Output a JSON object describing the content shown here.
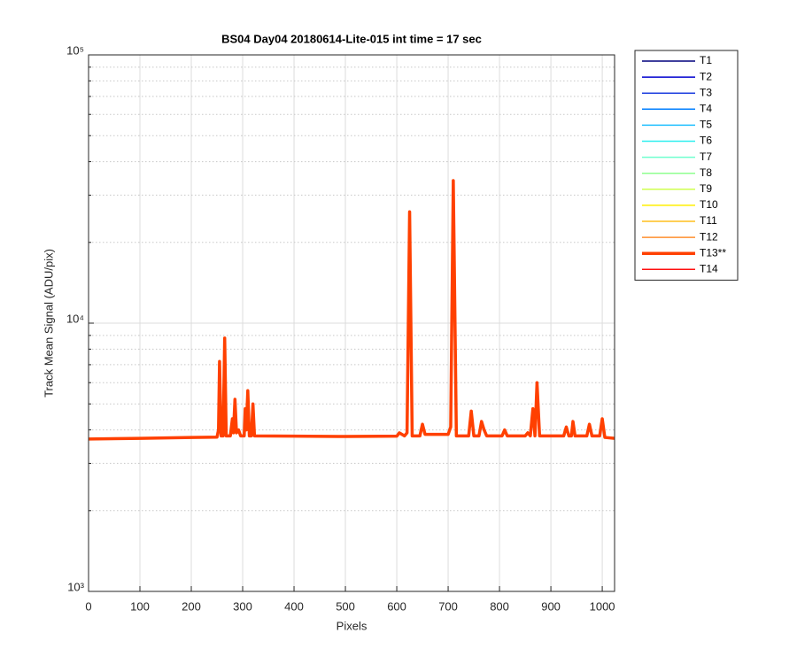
{
  "chart_data": {
    "type": "line",
    "title": "BS04 Day04 20180614-Lite-015 int time = 17 sec",
    "x_label": "Pixels",
    "y_label": "Track Mean Signal (ADU/pix)",
    "log_y": true,
    "grid": true,
    "legend": "outside-right",
    "xlim": [
      0,
      1024
    ],
    "ylim": [
      1000,
      100000
    ],
    "xticks": [
      0,
      100,
      200,
      300,
      400,
      500,
      600,
      700,
      800,
      900,
      1000
    ],
    "yticks": [
      {
        "value": 1000,
        "label": "10³"
      },
      {
        "value": 10000,
        "label": "10⁴"
      },
      {
        "value": 100000,
        "label": "10⁵"
      }
    ],
    "yminorticks": [
      2000,
      3000,
      4000,
      5000,
      6000,
      7000,
      8000,
      9000,
      20000,
      30000,
      40000,
      50000,
      60000,
      70000,
      80000,
      90000
    ],
    "x": [
      0,
      100,
      200,
      250,
      253,
      255,
      258,
      262,
      265,
      268,
      276,
      280,
      282,
      285,
      288,
      292,
      296,
      303,
      305,
      307,
      310,
      313,
      317,
      320,
      323,
      400,
      500,
      600,
      605,
      615,
      620,
      625,
      630,
      645,
      650,
      655,
      700,
      705,
      710,
      716,
      740,
      745,
      750,
      760,
      765,
      770,
      775,
      805,
      810,
      815,
      850,
      855,
      860,
      865,
      869,
      873,
      878,
      925,
      930,
      935,
      940,
      943,
      947,
      970,
      975,
      980,
      995,
      1000,
      1005,
      1024
    ],
    "series": [
      {
        "name": "T1",
        "color": "#00007f",
        "width": 1.5
      },
      {
        "name": "T2",
        "color": "#0000cf",
        "width": 1.5
      },
      {
        "name": "T3",
        "color": "#1f3fdf",
        "width": 1.5
      },
      {
        "name": "T4",
        "color": "#007fff",
        "width": 1.5
      },
      {
        "name": "T5",
        "color": "#1fbfff",
        "width": 1.5
      },
      {
        "name": "T6",
        "color": "#2fefef",
        "width": 1.5
      },
      {
        "name": "T7",
        "color": "#6fffcf",
        "width": 1.5
      },
      {
        "name": "T8",
        "color": "#8fff8f",
        "width": 1.5
      },
      {
        "name": "T9",
        "color": "#cfff4f",
        "width": 1.5
      },
      {
        "name": "T10",
        "color": "#ffef00",
        "width": 1.5
      },
      {
        "name": "T11",
        "color": "#ffbf1f",
        "width": 1.5
      },
      {
        "name": "T12",
        "color": "#ff8f2f",
        "width": 1.5
      },
      {
        "name": "T13**",
        "color": "#ff4000",
        "width": 3.5,
        "values": [
          3700,
          3720,
          3750,
          3760,
          4000,
          7200,
          3800,
          3800,
          8800,
          3800,
          3800,
          4400,
          3900,
          5200,
          3900,
          4000,
          3800,
          3800,
          4800,
          4000,
          5600,
          3800,
          3800,
          5000,
          3800,
          3790,
          3780,
          3790,
          3900,
          3800,
          3900,
          26000,
          3800,
          3800,
          4200,
          3850,
          3850,
          4100,
          34000,
          3800,
          3800,
          4700,
          3800,
          3800,
          4300,
          4000,
          3800,
          3800,
          4000,
          3800,
          3800,
          3900,
          3800,
          4800,
          3800,
          6000,
          3800,
          3800,
          4100,
          3800,
          3800,
          4300,
          3800,
          3800,
          4200,
          3800,
          3800,
          4400,
          3750,
          3720
        ]
      },
      {
        "name": "T14",
        "color": "#ff1010",
        "width": 1.5
      }
    ]
  }
}
